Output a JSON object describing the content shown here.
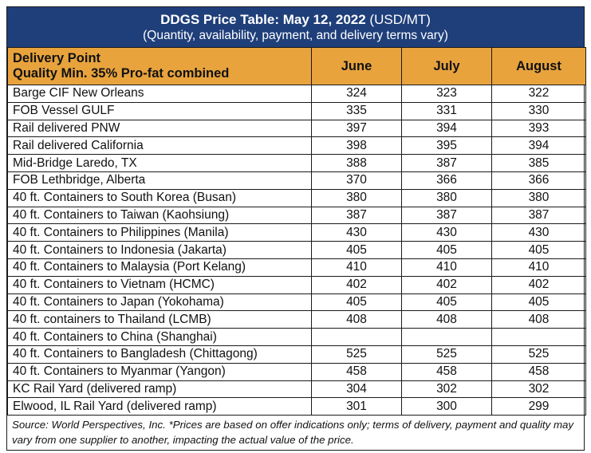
{
  "title": {
    "bold": "DDGS Price Table: May 12, 2022",
    "unit": " (USD/MT)",
    "subtitle": "(Quantity, availability, payment, and delivery terms vary)"
  },
  "header": {
    "delivery_point": "Delivery Point",
    "quality": "Quality Min. 35% Pro-fat combined",
    "columns": [
      "June",
      "July",
      "August"
    ]
  },
  "rows": [
    {
      "location": "Barge CIF New Orleans",
      "june": "324",
      "july": "323",
      "august": "322"
    },
    {
      "location": "FOB Vessel GULF",
      "june": "335",
      "july": "331",
      "august": "330"
    },
    {
      "location": "Rail delivered PNW",
      "june": "397",
      "july": "394",
      "august": "393"
    },
    {
      "location": "Rail delivered California",
      "june": "398",
      "july": "395",
      "august": "394"
    },
    {
      "location": "Mid-Bridge Laredo, TX",
      "june": "388",
      "july": "387",
      "august": "385"
    },
    {
      "location": "FOB Lethbridge, Alberta",
      "june": "370",
      "july": "366",
      "august": "366"
    },
    {
      "location": "40 ft. Containers to South Korea (Busan)",
      "june": "380",
      "july": "380",
      "august": "380"
    },
    {
      "location": "40 ft. Containers to Taiwan (Kaohsiung)",
      "june": "387",
      "july": "387",
      "august": "387"
    },
    {
      "location": "40 ft. Containers to Philippines (Manila)",
      "june": "430",
      "july": "430",
      "august": "430"
    },
    {
      "location": "40 ft. Containers to Indonesia (Jakarta)",
      "june": "405",
      "july": "405",
      "august": "405"
    },
    {
      "location": "40 ft. Containers to Malaysia (Port Kelang)",
      "june": "410",
      "july": "410",
      "august": "410"
    },
    {
      "location": "40 ft. Containers to Vietnam (HCMC)",
      "june": "402",
      "july": "402",
      "august": "402"
    },
    {
      "location": "40 ft. Containers to Japan (Yokohama)",
      "june": "405",
      "july": "405",
      "august": "405"
    },
    {
      "location": "40 ft. containers to Thailand (LCMB)",
      "june": "408",
      "july": "408",
      "august": "408"
    },
    {
      "location": "40 ft. Containers to China (Shanghai)",
      "june": "",
      "july": "",
      "august": ""
    },
    {
      "location": "40 ft. Containers to Bangladesh (Chittagong)",
      "june": "525",
      "july": "525",
      "august": "525"
    },
    {
      "location": "40 ft. Containers to Myanmar (Yangon)",
      "june": "458",
      "july": "458",
      "august": "458"
    },
    {
      "location": "KC Rail Yard (delivered ramp)",
      "june": "304",
      "july": "302",
      "august": "302"
    },
    {
      "location": "Elwood, IL Rail Yard (delivered ramp)",
      "june": "301",
      "july": "300",
      "august": "299"
    }
  ],
  "footnote": "Source: World Perspectives, Inc. *Prices are based on offer indications only; terms of delivery, payment and quality may vary from one supplier to another, impacting the actual value of the price.",
  "colors": {
    "title_bg": "#1f3f7a",
    "header_bg": "#e8a33d"
  }
}
